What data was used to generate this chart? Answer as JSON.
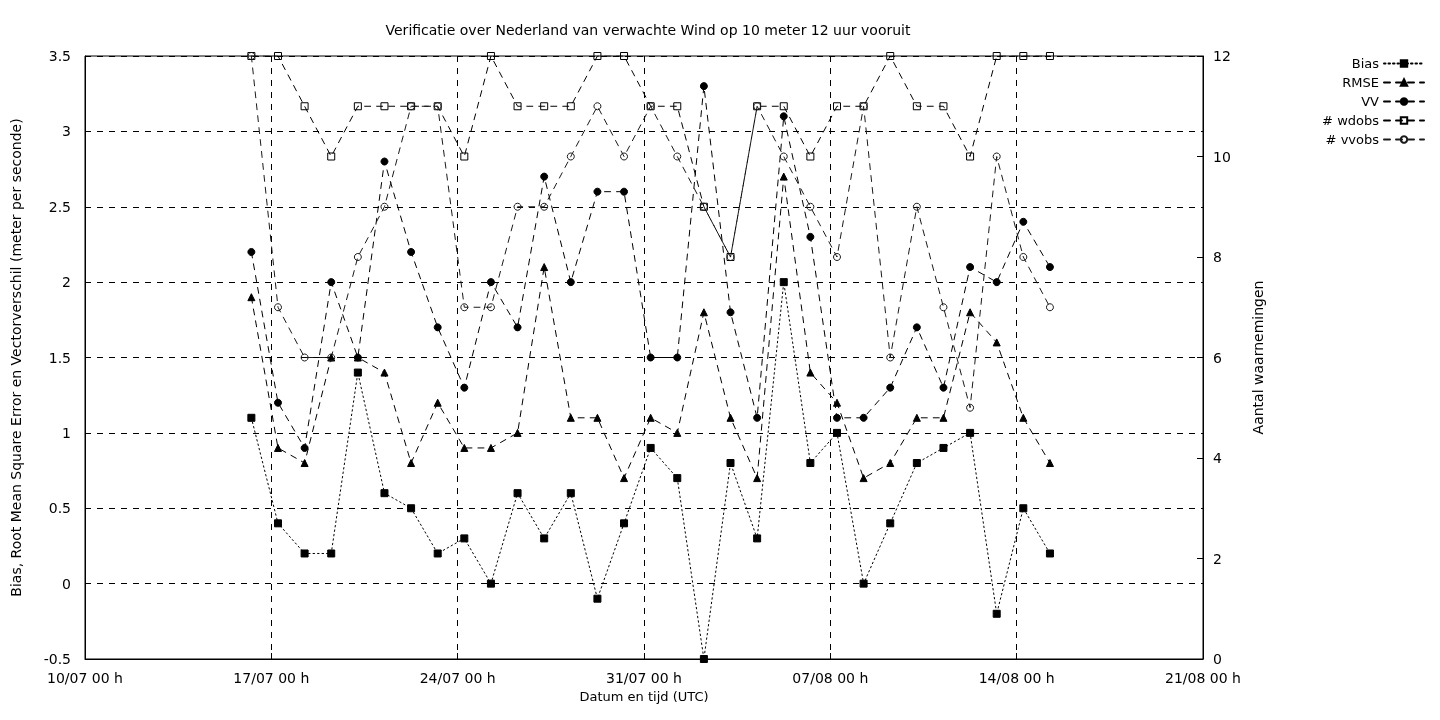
{
  "chart_data": {
    "type": "line",
    "title": "Verificatie over Nederland van verwachte Wind op 10 meter 12 uur vooruit",
    "xlabel": "Datum en tijd (UTC)",
    "ylabel": "Bias, Root Mean Square Error en Vectorverschil (meter per seconde)",
    "y2label": "Aantal waarnemingen",
    "x": [
      "--07-16T06:00",
      "--07-17T06:00",
      "--07-18T06:00",
      "--07-19T06:00",
      "--07-20T06:00",
      "--07-21T06:00",
      "--07-22T06:00",
      "--07-23T06:00",
      "--07-24T06:00",
      "--07-25T06:00",
      "--07-26T06:00",
      "--07-27T06:00",
      "--07-28T06:00",
      "--07-29T06:00",
      "--07-30T06:00",
      "--07-31T06:00",
      "--08-01T06:00",
      "--08-02T06:00",
      "--08-03T06:00",
      "--08-04T06:00",
      "--08-05T06:00",
      "--08-06T06:00",
      "--08-07T06:00",
      "--08-08T06:00",
      "--08-09T06:00",
      "--08-10T06:00",
      "--08-11T06:00",
      "--08-12T06:00",
      "--08-13T06:00",
      "--08-14T06:00",
      "--08-15T06:00"
    ],
    "series": [
      {
        "name": "Bias",
        "color": "#000000",
        "marker": "square",
        "line_style": "dotted",
        "values": [
          1.1,
          0.4,
          0.2,
          0.2,
          1.4,
          0.6,
          0.5,
          0.2,
          0.3,
          0.0,
          0.6,
          0.3,
          0.6,
          -0.1,
          0.4,
          0.9,
          0.7,
          -0.5,
          0.8,
          0.3,
          2.0,
          0.8,
          1.0,
          0.0,
          0.4,
          0.8,
          0.9,
          1.0,
          -0.2,
          0.5,
          0.2
        ]
      },
      {
        "name": "RMSE",
        "color": "#000000",
        "marker": "triangle",
        "line_style": "dashed",
        "values": [
          1.9,
          0.9,
          0.8,
          1.5,
          1.5,
          1.4,
          0.8,
          1.2,
          0.9,
          0.9,
          1.0,
          2.1,
          1.1,
          1.1,
          0.7,
          1.1,
          1.0,
          1.8,
          1.1,
          0.7,
          2.7,
          1.4,
          1.2,
          0.7,
          0.8,
          1.1,
          1.1,
          1.8,
          1.6,
          1.1,
          0.8
        ]
      },
      {
        "name": "VV",
        "color": "#000000",
        "marker": "circle",
        "line_style": "dashed",
        "values": [
          2.2,
          1.2,
          0.9,
          2.0,
          1.5,
          2.8,
          2.2,
          1.7,
          1.3,
          2.0,
          1.7,
          2.7,
          2.0,
          2.6,
          2.6,
          1.5,
          1.5,
          3.3,
          1.8,
          1.1,
          3.1,
          2.3,
          1.1,
          1.1,
          1.3,
          1.7,
          1.3,
          2.1,
          2.0,
          2.4,
          2.1
        ]
      },
      {
        "name": "# wdobs",
        "color": "#000000",
        "marker": "square",
        "line_style": "dashed",
        "axis": "y2",
        "values": [
          12,
          12,
          11,
          10,
          11,
          11,
          11,
          11,
          10,
          12,
          11,
          11,
          11,
          12,
          12,
          11,
          11,
          9,
          8,
          11,
          11,
          10,
          11,
          11,
          12,
          11,
          11,
          10,
          12,
          12,
          12
        ]
      },
      {
        "name": "# vvobs",
        "color": "#1a1a1a",
        "marker": "circle",
        "line_style": "dashed",
        "axis": "y2",
        "values": [
          12,
          7,
          6,
          6,
          8,
          9,
          11,
          11,
          7,
          7,
          9,
          9,
          10,
          11,
          10,
          11,
          10,
          9,
          8,
          11,
          10,
          9,
          8,
          11,
          6,
          9,
          7,
          5,
          10,
          8,
          7
        ]
      }
    ],
    "xlim": [
      "--07-10T00:00",
      "--08-21T00:00"
    ],
    "xticks": [
      {
        "value": "--07-10T00:00",
        "label": "10/07 00 h"
      },
      {
        "value": "--07-17T00:00",
        "label": "17/07 00 h"
      },
      {
        "value": "--07-24T00:00",
        "label": "24/07 00 h"
      },
      {
        "value": "--07-31T00:00",
        "label": "31/07 00 h"
      },
      {
        "value": "--08-07T00:00",
        "label": "07/08 00 h"
      },
      {
        "value": "--08-14T00:00",
        "label": "14/08 00 h"
      },
      {
        "value": "--08-21T00:00",
        "label": "21/08 00 h"
      }
    ],
    "ylim": [
      -0.5,
      3.5
    ],
    "yticks": [
      -0.5,
      0,
      0.5,
      1,
      1.5,
      2,
      2.5,
      3,
      3.5
    ],
    "y2lim": [
      0,
      12
    ],
    "y2ticks": [
      0,
      2,
      4,
      6,
      8,
      10,
      12
    ],
    "grid": true,
    "legend": "top right"
  }
}
